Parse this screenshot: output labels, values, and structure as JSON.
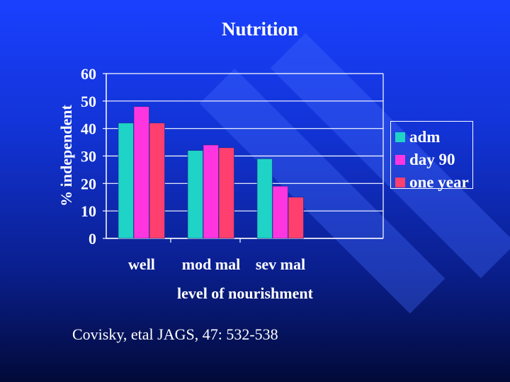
{
  "slide": {
    "title": "Nutrition",
    "citation": "Covisky, etal JAGS, 47:  532-538"
  },
  "colors": {
    "background": "#1233d4",
    "adm": "#1fd3c6",
    "day90": "#ff36e0",
    "oneyear": "#ff3f6e",
    "axis": "#ffffff"
  },
  "chart_data": {
    "type": "bar",
    "title": "Nutrition",
    "xlabel": "level of nourishment",
    "ylabel": "% independent",
    "categories": [
      "well",
      "mod mal",
      "sev mal"
    ],
    "series": [
      {
        "name": "adm",
        "color": "#1fd3c6",
        "values": [
          42,
          32,
          29
        ]
      },
      {
        "name": "day 90",
        "color": "#ff36e0",
        "values": [
          48,
          34,
          19
        ]
      },
      {
        "name": "one year",
        "color": "#ff3f6e",
        "values": [
          42,
          33,
          15
        ]
      }
    ],
    "ylim": [
      0,
      60
    ],
    "yticks": [
      0,
      10,
      20,
      30,
      40,
      50,
      60
    ],
    "grid": true,
    "legend": "right"
  }
}
